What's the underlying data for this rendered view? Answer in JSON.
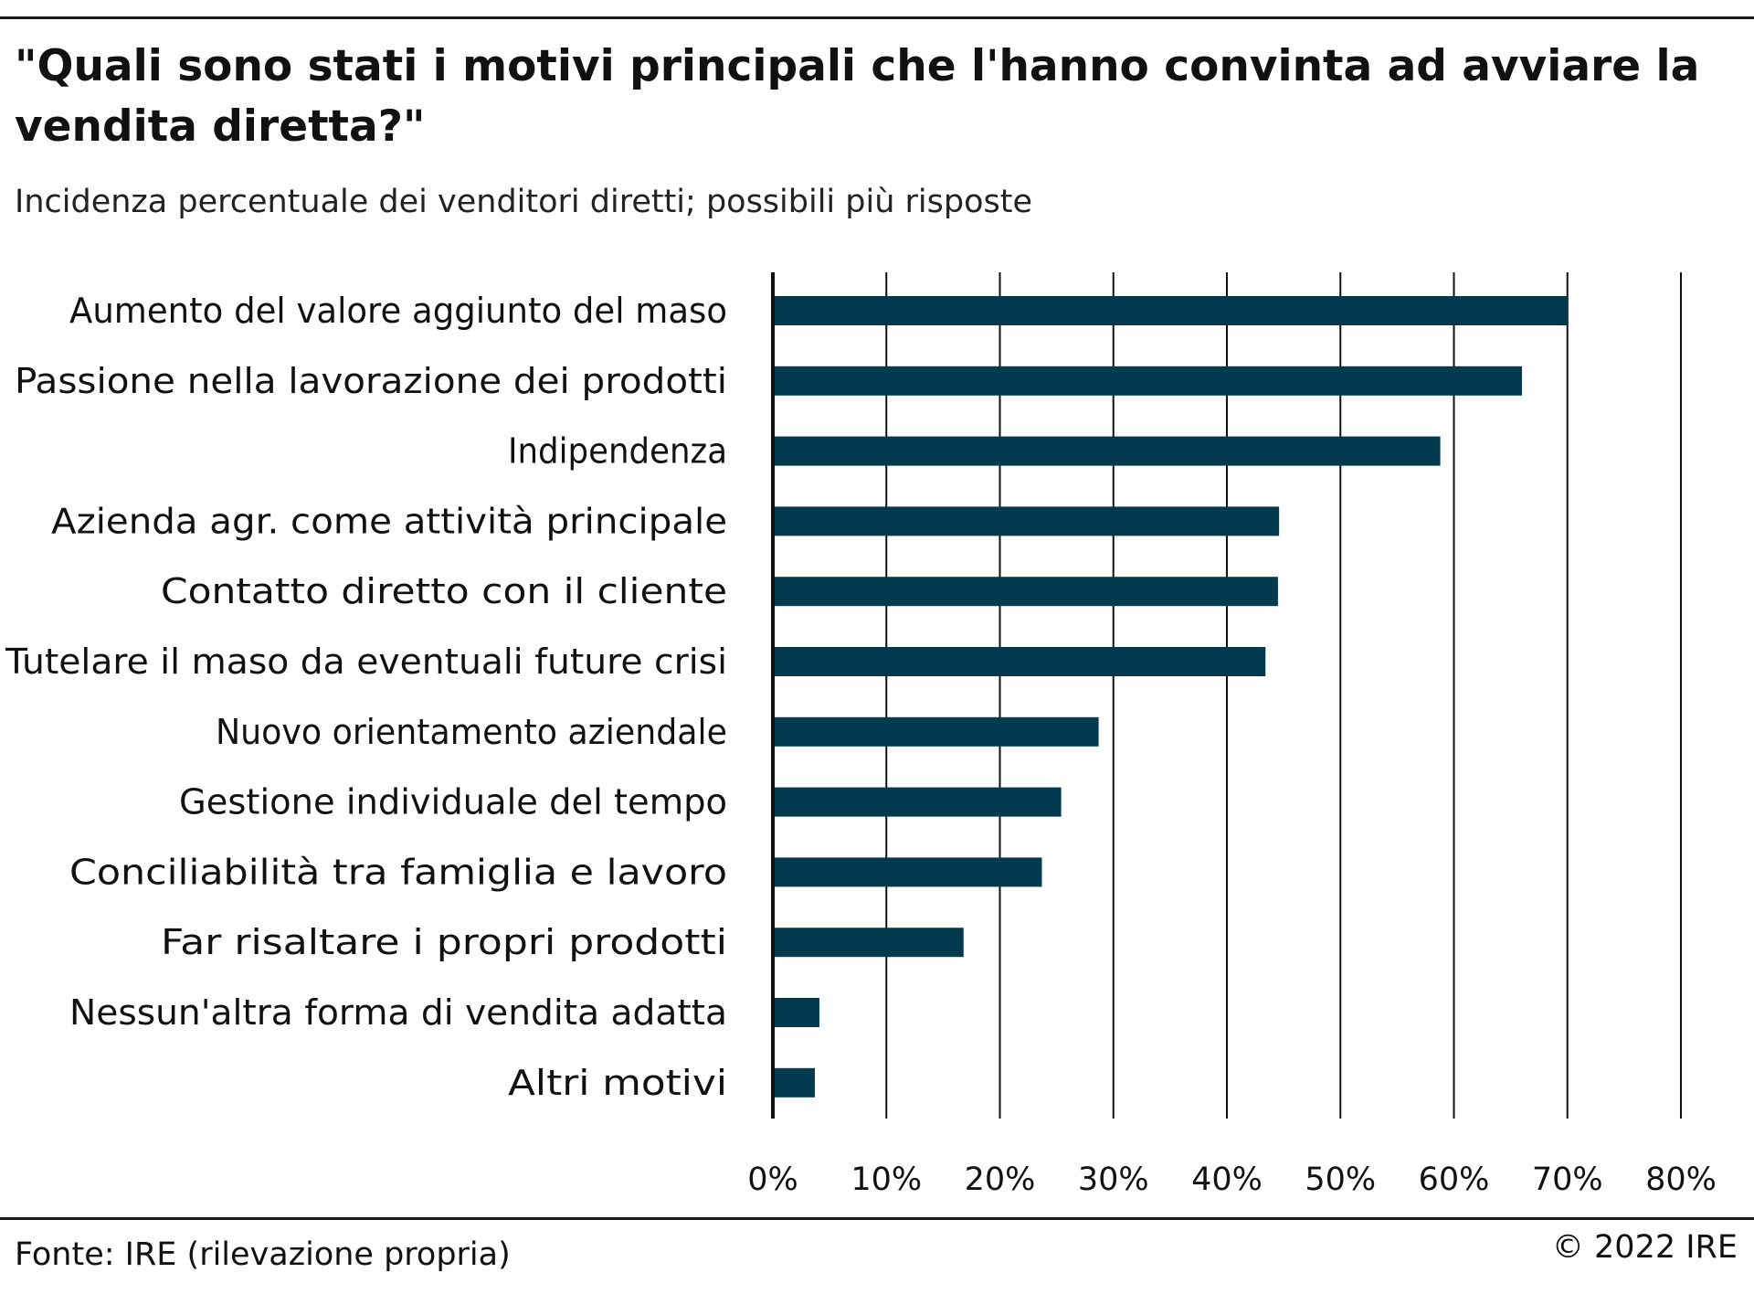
{
  "header": {
    "title": "\"Quali sono stati i motivi principali che l'hanno convinta ad avviare la vendita diretta?\"",
    "subtitle": "Incidenza percentuale dei venditori diretti; possibili più risposte"
  },
  "footer": {
    "source": "Fonte: IRE (rilevazione propria)",
    "copyright": "© 2022 IRE"
  },
  "colors": {
    "bar": "#033a50",
    "grid": "#111111"
  },
  "chart_data": {
    "type": "bar",
    "orientation": "horizontal",
    "title": "\"Quali sono stati i motivi principali che l'hanno convinta ad avviare la vendita diretta?\"",
    "subtitle": "Incidenza percentuale dei venditori diretti; possibili più risposte",
    "xlabel": "",
    "ylabel": "",
    "xlim": [
      0,
      80
    ],
    "grid": true,
    "ticks": [
      {
        "value": 0,
        "label": "0%"
      },
      {
        "value": 10,
        "label": "10%"
      },
      {
        "value": 20,
        "label": "20%"
      },
      {
        "value": 30,
        "label": "30%"
      },
      {
        "value": 40,
        "label": "40%"
      },
      {
        "value": 50,
        "label": "50%"
      },
      {
        "value": 60,
        "label": "60%"
      },
      {
        "value": 70,
        "label": "70%"
      },
      {
        "value": 80,
        "label": "80%"
      }
    ],
    "categories": [
      "Aumento del valore aggiunto del maso",
      "Passione nella lavorazione dei prodotti",
      "Indipendenza",
      "Azienda agr. come attività principale",
      "Contatto diretto con il cliente",
      "Tutelare il maso da eventuali future crisi",
      "Nuovo orientamento aziendale",
      "Gestione individuale del tempo",
      "Conciliabilità tra famiglia e lavoro",
      "Far risaltare i propri prodotti",
      "Nessun'altra forma di vendita adatta",
      "Altri motivi"
    ],
    "values": [
      70.0,
      66.0,
      58.8,
      44.6,
      44.5,
      43.4,
      28.7,
      25.4,
      23.7,
      16.8,
      4.1,
      3.7
    ]
  }
}
